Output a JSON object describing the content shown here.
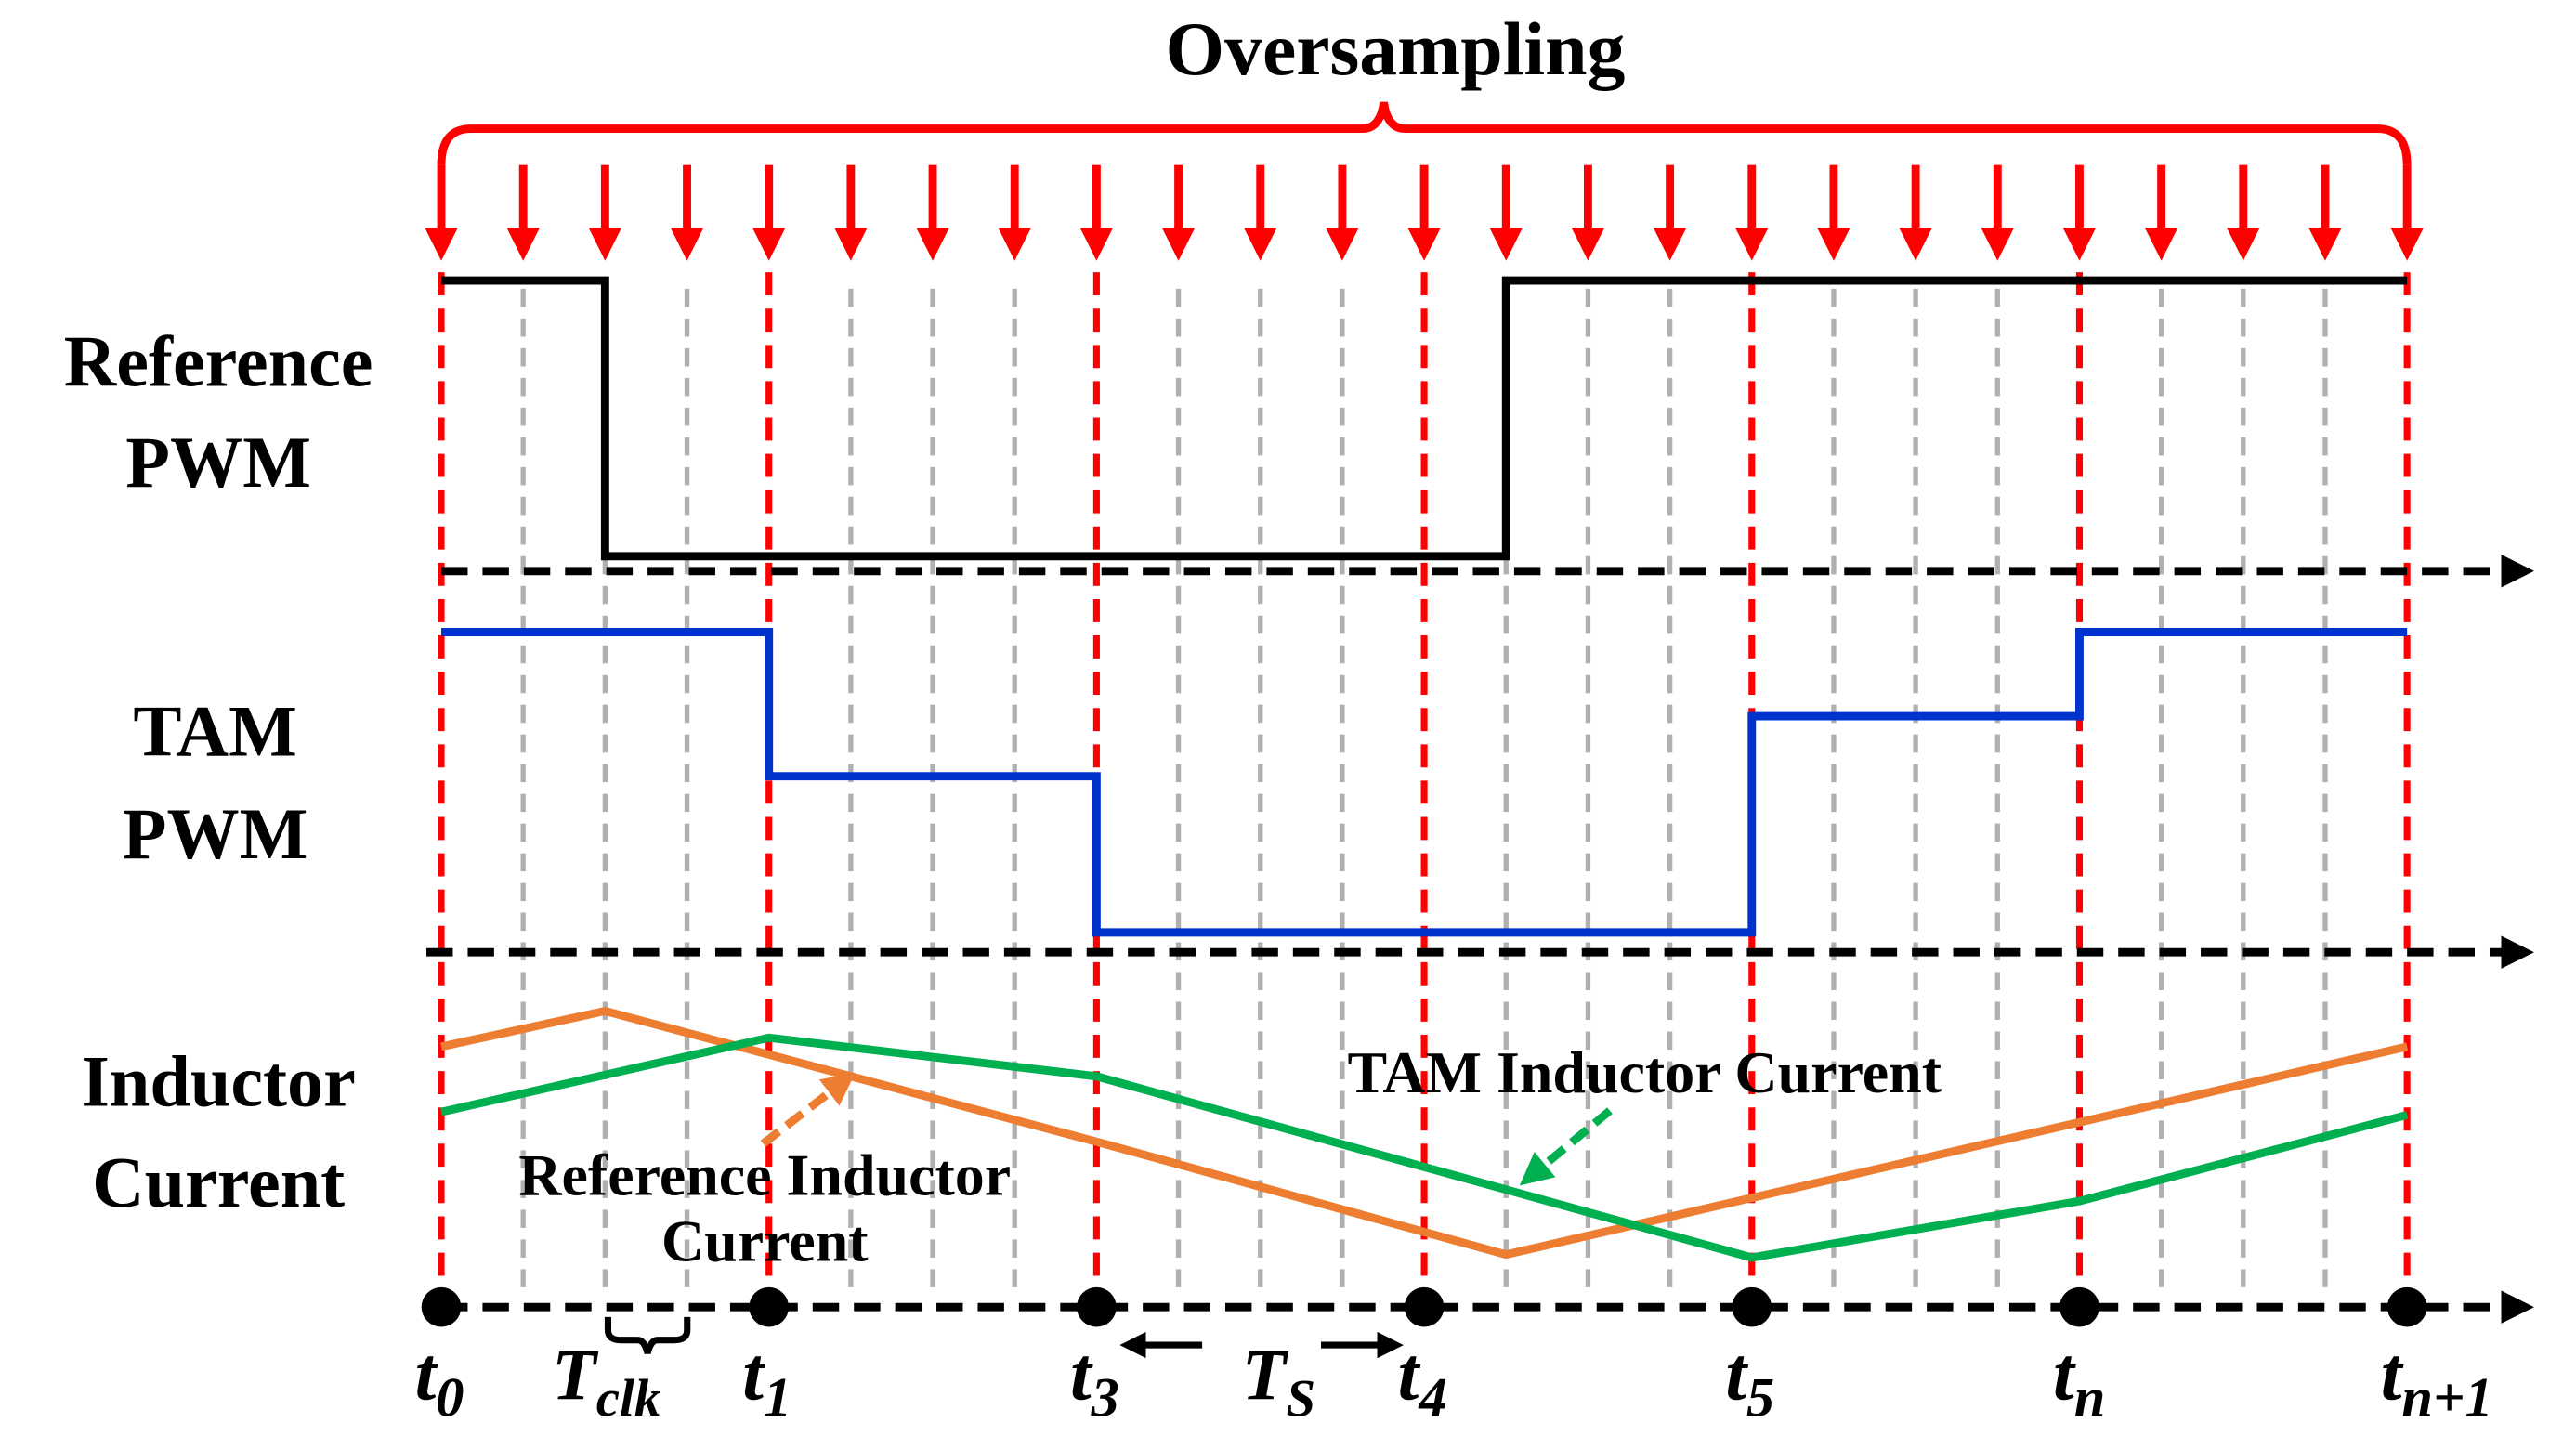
{
  "title": "Oversampling",
  "row_labels": {
    "ref_pwm": [
      "Reference",
      "PWM"
    ],
    "tam_pwm": [
      "TAM",
      "PWM"
    ],
    "inductor": [
      "Inductor",
      "Current"
    ]
  },
  "annotations": {
    "ref_current": [
      "Reference Inductor",
      "Current"
    ],
    "tam_current": "TAM Inductor Current",
    "tclk": {
      "main": "T",
      "sub": "clk"
    },
    "ts": {
      "main": "T",
      "sub": "S"
    }
  },
  "colors": {
    "sample_arrow": "#ff0000",
    "ref_pwm": "#000000",
    "tam_pwm": "#0033cc",
    "ref_current": "#ed7d31",
    "tam_current": "#00b050",
    "grid": "#b0b0b0"
  },
  "diagram": {
    "clock_count": 24,
    "marks": [
      {
        "clock": 0,
        "main": "t",
        "sub": "0"
      },
      {
        "clock": 4,
        "main": "t",
        "sub": "1"
      },
      {
        "clock": 8,
        "main": "t",
        "sub": "3"
      },
      {
        "clock": 12,
        "main": "t",
        "sub": "4"
      },
      {
        "clock": 16,
        "main": "t",
        "sub": "5"
      },
      {
        "clock": 20,
        "main": "t",
        "sub": "n"
      },
      {
        "clock": 24,
        "main": "t",
        "sub": "n+1"
      }
    ],
    "ref_pwm_steps": [
      [
        0,
        1
      ],
      [
        2,
        0
      ],
      [
        13,
        1
      ],
      [
        24,
        1
      ]
    ],
    "tam_pwm_steps": [
      [
        0,
        1
      ],
      [
        4,
        0.52
      ],
      [
        8,
        0
      ],
      [
        16,
        0.72
      ],
      [
        20,
        1
      ],
      [
        24,
        1
      ]
    ],
    "ref_current": [
      [
        0,
        0.81
      ],
      [
        2,
        0.93
      ],
      [
        8,
        0.49
      ],
      [
        13,
        0.11
      ],
      [
        24,
        0.81
      ]
    ],
    "tam_current": [
      [
        0,
        0.59
      ],
      [
        4,
        0.84
      ],
      [
        8,
        0.71
      ],
      [
        16,
        0.1
      ],
      [
        20,
        0.29
      ],
      [
        24,
        0.58
      ]
    ]
  }
}
